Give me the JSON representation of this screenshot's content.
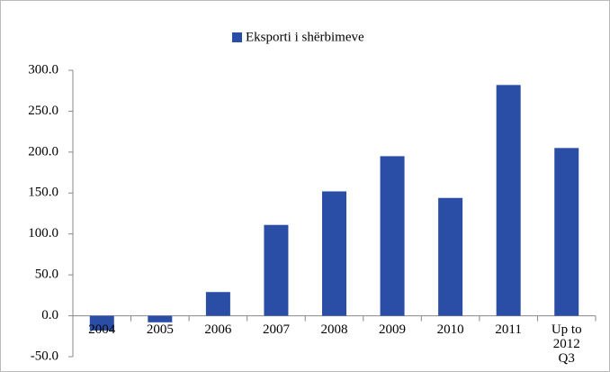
{
  "chart_data": {
    "type": "bar",
    "categories": [
      "2004",
      "2005",
      "2006",
      "2007",
      "2008",
      "2009",
      "2010",
      "2011",
      "Up to 2012 Q3"
    ],
    "series": [
      {
        "name": "Eksporti i shërbimeve",
        "color": "#2a4ea6",
        "values": [
          -18,
          -8,
          29,
          111,
          152,
          195,
          144,
          282,
          205
        ]
      }
    ],
    "ylim": [
      -50,
      300
    ],
    "yticks": [
      {
        "value": -50,
        "label": "-50.0"
      },
      {
        "value": 0,
        "label": "0.0"
      },
      {
        "value": 50,
        "label": "50.0"
      },
      {
        "value": 100,
        "label": "100.0"
      },
      {
        "value": 150,
        "label": "150.0"
      },
      {
        "value": 200,
        "label": "200.0"
      },
      {
        "value": 250,
        "label": "250.0"
      },
      {
        "value": 300,
        "label": "300.0"
      }
    ],
    "legend": "top",
    "grid": false
  }
}
